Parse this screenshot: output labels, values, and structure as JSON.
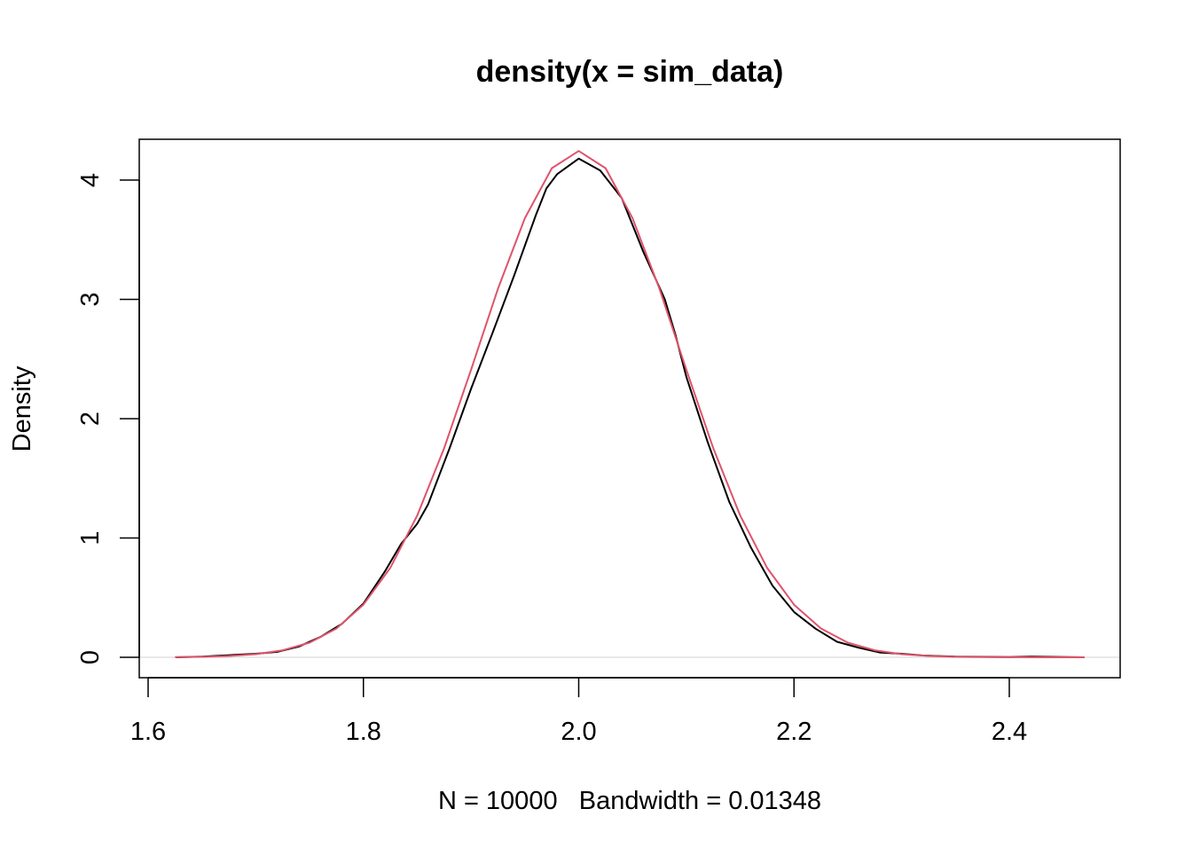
{
  "chart_data": {
    "type": "line",
    "title": "density(x = sim_data)",
    "xlabel": "N = 10000   Bandwidth = 0.01348",
    "ylabel": "Density",
    "xlim": [
      1.6,
      2.5
    ],
    "ylim": [
      0,
      4.3
    ],
    "x_ticks": [
      "1.6",
      "1.8",
      "2.0",
      "2.2",
      "2.4"
    ],
    "y_ticks": [
      "0",
      "1",
      "2",
      "3",
      "4"
    ],
    "grid": false,
    "reference_line": {
      "y": 0,
      "color": "#d3d3d3"
    },
    "series": [
      {
        "color": "#000000",
        "x": [
          1.626,
          1.65,
          1.68,
          1.7,
          1.72,
          1.74,
          1.76,
          1.78,
          1.8,
          1.82,
          1.835,
          1.85,
          1.86,
          1.88,
          1.9,
          1.92,
          1.94,
          1.96,
          1.97,
          1.98,
          2.0,
          2.02,
          2.04,
          2.06,
          2.07,
          2.08,
          2.09,
          2.1,
          2.12,
          2.14,
          2.16,
          2.18,
          2.2,
          2.22,
          2.24,
          2.26,
          2.28,
          2.3,
          2.32,
          2.35,
          2.4,
          2.42,
          2.47
        ],
        "y": [
          0,
          0.005,
          0.02,
          0.03,
          0.045,
          0.09,
          0.17,
          0.28,
          0.45,
          0.72,
          0.95,
          1.12,
          1.28,
          1.75,
          2.25,
          2.72,
          3.2,
          3.7,
          3.93,
          4.05,
          4.18,
          4.08,
          3.85,
          3.4,
          3.2,
          3.0,
          2.7,
          2.35,
          1.8,
          1.3,
          0.92,
          0.6,
          0.38,
          0.24,
          0.13,
          0.08,
          0.04,
          0.03,
          0.015,
          0.005,
          0.002,
          0.006,
          0
        ]
      },
      {
        "color": "#DF536B",
        "x": [
          1.625,
          1.65,
          1.675,
          1.7,
          1.725,
          1.75,
          1.775,
          1.8,
          1.825,
          1.85,
          1.875,
          1.9,
          1.925,
          1.95,
          1.975,
          2.0,
          2.025,
          2.05,
          2.075,
          2.1,
          2.125,
          2.15,
          2.175,
          2.2,
          2.225,
          2.25,
          2.275,
          2.3,
          2.325,
          2.35,
          2.375,
          2.4,
          2.425,
          2.45,
          2.47
        ],
        "y": [
          0.0015,
          0.004,
          0.011,
          0.026,
          0.059,
          0.123,
          0.242,
          0.441,
          0.75,
          1.188,
          1.753,
          2.41,
          3.09,
          3.68,
          4.1,
          4.244,
          4.1,
          3.68,
          3.09,
          2.41,
          1.753,
          1.188,
          0.75,
          0.441,
          0.242,
          0.123,
          0.059,
          0.026,
          0.011,
          0.004,
          0.0015,
          0.0005,
          0.0002,
          0.0001,
          0
        ]
      }
    ]
  }
}
